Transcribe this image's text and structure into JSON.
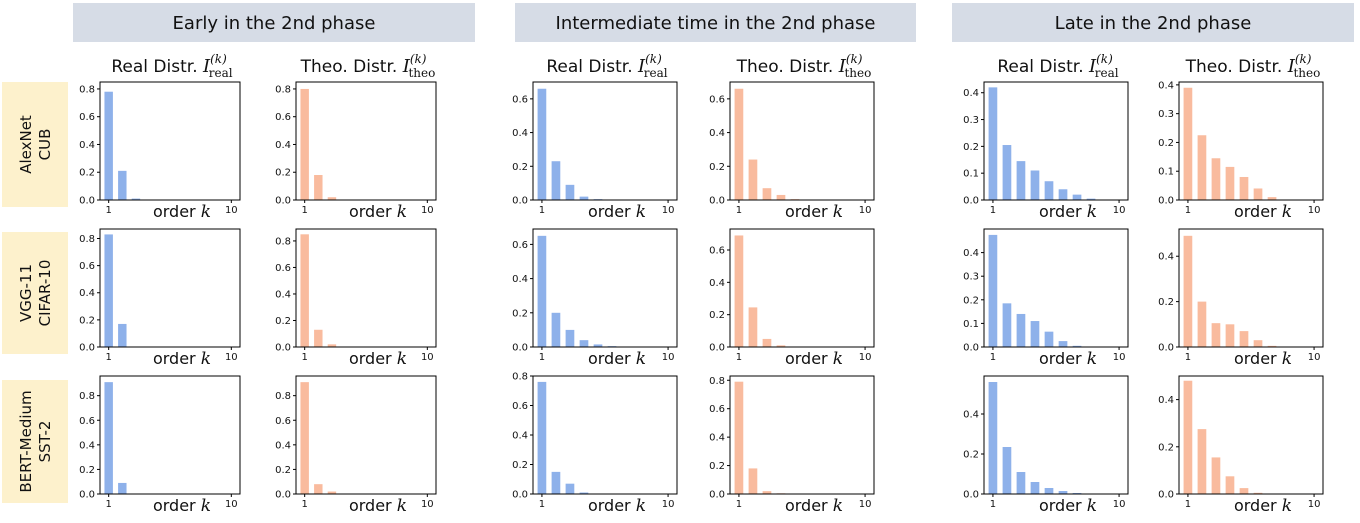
{
  "phases": [
    "Early in the 2nd phase",
    "Intermediate time in the 2nd phase",
    "Late in the 2nd phase"
  ],
  "rows": [
    {
      "line1": "AlexNet",
      "line2": "CUB"
    },
    {
      "line1": "VGG-11",
      "line2": "CIFAR-10"
    },
    {
      "line1": "BERT-Medium",
      "line2": "SST-2"
    }
  ],
  "columns": [
    {
      "title": "Real Distr.",
      "symbol": "I",
      "sup": "(k)",
      "sub": "real"
    },
    {
      "title": "Theo. Distr.",
      "symbol": "I",
      "sup": "(k)",
      "sub": "theo"
    }
  ],
  "colors": {
    "real": "#8eb1ea",
    "theo": "#f9bb9e",
    "header_bg": "#d6dce6",
    "row_bg": "#fdf1cc"
  },
  "chart_data": [
    {
      "type": "bar",
      "phase": "Early in the 2nd phase",
      "row": "AlexNet CUB",
      "distribution": "real",
      "xlabel": "order k",
      "x": [
        1,
        2,
        3,
        4,
        5,
        6,
        7,
        8,
        9,
        10
      ],
      "values": [
        0.78,
        0.21,
        0.01,
        0,
        0,
        0,
        0,
        0,
        0,
        0
      ],
      "ylim": [
        0,
        0.85
      ],
      "yticks": [
        0.0,
        0.2,
        0.4,
        0.6,
        0.8
      ],
      "xticks": [
        1,
        10
      ]
    },
    {
      "type": "bar",
      "phase": "Early in the 2nd phase",
      "row": "AlexNet CUB",
      "distribution": "theo",
      "xlabel": "order k",
      "x": [
        1,
        2,
        3,
        4,
        5,
        6,
        7,
        8,
        9,
        10
      ],
      "values": [
        0.8,
        0.18,
        0.02,
        0,
        0,
        0,
        0,
        0,
        0,
        0
      ],
      "ylim": [
        0,
        0.85
      ],
      "yticks": [
        0.0,
        0.2,
        0.4,
        0.6,
        0.8
      ],
      "xticks": [
        1,
        10
      ]
    },
    {
      "type": "bar",
      "phase": "Intermediate time in the 2nd phase",
      "row": "AlexNet CUB",
      "distribution": "real",
      "xlabel": "order k",
      "x": [
        1,
        2,
        3,
        4,
        5,
        6,
        7,
        8,
        9,
        10
      ],
      "values": [
        0.66,
        0.23,
        0.09,
        0.02,
        0.005,
        0,
        0,
        0,
        0,
        0
      ],
      "ylim": [
        0,
        0.7
      ],
      "yticks": [
        0.0,
        0.2,
        0.4,
        0.6
      ],
      "xticks": [
        1,
        10
      ]
    },
    {
      "type": "bar",
      "phase": "Intermediate time in the 2nd phase",
      "row": "AlexNet CUB",
      "distribution": "theo",
      "xlabel": "order k",
      "x": [
        1,
        2,
        3,
        4,
        5,
        6,
        7,
        8,
        9,
        10
      ],
      "values": [
        0.66,
        0.24,
        0.07,
        0.03,
        0.005,
        0,
        0,
        0,
        0,
        0
      ],
      "ylim": [
        0,
        0.7
      ],
      "yticks": [
        0.0,
        0.2,
        0.4,
        0.6
      ],
      "xticks": [
        1,
        10
      ]
    },
    {
      "type": "bar",
      "phase": "Late in the 2nd phase",
      "row": "AlexNet CUB",
      "distribution": "real",
      "xlabel": "order k",
      "x": [
        1,
        2,
        3,
        4,
        5,
        6,
        7,
        8,
        9,
        10
      ],
      "values": [
        0.42,
        0.205,
        0.145,
        0.11,
        0.07,
        0.04,
        0.02,
        0.005,
        0,
        0
      ],
      "ylim": [
        0,
        0.44
      ],
      "yticks": [
        0.0,
        0.1,
        0.2,
        0.3,
        0.4
      ],
      "xticks": [
        1,
        10
      ]
    },
    {
      "type": "bar",
      "phase": "Late in the 2nd phase",
      "row": "AlexNet CUB",
      "distribution": "theo",
      "xlabel": "order k",
      "x": [
        1,
        2,
        3,
        4,
        5,
        6,
        7,
        8,
        9,
        10
      ],
      "values": [
        0.39,
        0.225,
        0.145,
        0.115,
        0.08,
        0.04,
        0.01,
        0,
        0,
        0
      ],
      "ylim": [
        0,
        0.41
      ],
      "yticks": [
        0.0,
        0.1,
        0.2,
        0.3,
        0.4
      ],
      "xticks": [
        1,
        10
      ]
    },
    {
      "type": "bar",
      "phase": "Early in the 2nd phase",
      "row": "VGG-11 CIFAR-10",
      "distribution": "real",
      "xlabel": "order k",
      "x": [
        1,
        2,
        3,
        4,
        5,
        6,
        7,
        8,
        9,
        10
      ],
      "values": [
        0.83,
        0.17,
        0,
        0,
        0,
        0,
        0,
        0,
        0,
        0
      ],
      "ylim": [
        0,
        0.87
      ],
      "yticks": [
        0.0,
        0.2,
        0.4,
        0.6,
        0.8
      ],
      "xticks": [
        1,
        10
      ]
    },
    {
      "type": "bar",
      "phase": "Early in the 2nd phase",
      "row": "VGG-11 CIFAR-10",
      "distribution": "theo",
      "xlabel": "order k",
      "x": [
        1,
        2,
        3,
        4,
        5,
        6,
        7,
        8,
        9,
        10
      ],
      "values": [
        0.85,
        0.13,
        0.02,
        0,
        0,
        0,
        0,
        0,
        0,
        0
      ],
      "ylim": [
        0,
        0.89
      ],
      "yticks": [
        0.0,
        0.2,
        0.4,
        0.6,
        0.8
      ],
      "xticks": [
        1,
        10
      ]
    },
    {
      "type": "bar",
      "phase": "Intermediate time in the 2nd phase",
      "row": "VGG-11 CIFAR-10",
      "distribution": "real",
      "xlabel": "order k",
      "x": [
        1,
        2,
        3,
        4,
        5,
        6,
        7,
        8,
        9,
        10
      ],
      "values": [
        0.65,
        0.2,
        0.1,
        0.04,
        0.015,
        0.005,
        0,
        0,
        0,
        0
      ],
      "ylim": [
        0,
        0.69
      ],
      "yticks": [
        0.0,
        0.2,
        0.4,
        0.6
      ],
      "xticks": [
        1,
        10
      ]
    },
    {
      "type": "bar",
      "phase": "Intermediate time in the 2nd phase",
      "row": "VGG-11 CIFAR-10",
      "distribution": "theo",
      "xlabel": "order k",
      "x": [
        1,
        2,
        3,
        4,
        5,
        6,
        7,
        8,
        9,
        10
      ],
      "values": [
        0.69,
        0.245,
        0.05,
        0.01,
        0,
        0,
        0,
        0,
        0,
        0
      ],
      "ylim": [
        0,
        0.73
      ],
      "yticks": [
        0.0,
        0.2,
        0.4,
        0.6
      ],
      "xticks": [
        1,
        10
      ]
    },
    {
      "type": "bar",
      "phase": "Late in the 2nd phase",
      "row": "VGG-11 CIFAR-10",
      "distribution": "real",
      "xlabel": "order k",
      "x": [
        1,
        2,
        3,
        4,
        5,
        6,
        7,
        8,
        9,
        10
      ],
      "values": [
        0.475,
        0.185,
        0.14,
        0.11,
        0.065,
        0.025,
        0.005,
        0,
        0,
        0
      ],
      "ylim": [
        0,
        0.5
      ],
      "yticks": [
        0.0,
        0.1,
        0.2,
        0.3,
        0.4
      ],
      "xticks": [
        1,
        10
      ]
    },
    {
      "type": "bar",
      "phase": "Late in the 2nd phase",
      "row": "VGG-11 CIFAR-10",
      "distribution": "theo",
      "xlabel": "order k",
      "x": [
        1,
        2,
        3,
        4,
        5,
        6,
        7,
        8,
        9,
        10
      ],
      "values": [
        0.49,
        0.2,
        0.105,
        0.1,
        0.07,
        0.03,
        0.005,
        0,
        0,
        0
      ],
      "ylim": [
        0,
        0.52
      ],
      "yticks": [
        0.0,
        0.2,
        0.4
      ],
      "xticks": [
        1,
        10
      ]
    },
    {
      "type": "bar",
      "phase": "Early in the 2nd phase",
      "row": "BERT-Medium SST-2",
      "distribution": "real",
      "xlabel": "order k",
      "x": [
        1,
        2,
        3,
        4,
        5,
        6,
        7,
        8,
        9,
        10
      ],
      "values": [
        0.91,
        0.09,
        0,
        0,
        0,
        0,
        0,
        0,
        0,
        0
      ],
      "ylim": [
        0,
        0.96
      ],
      "yticks": [
        0.0,
        0.2,
        0.4,
        0.6,
        0.8
      ],
      "xticks": [
        1,
        10
      ]
    },
    {
      "type": "bar",
      "phase": "Early in the 2nd phase",
      "row": "BERT-Medium SST-2",
      "distribution": "theo",
      "xlabel": "order k",
      "x": [
        1,
        2,
        3,
        4,
        5,
        6,
        7,
        8,
        9,
        10
      ],
      "values": [
        0.91,
        0.08,
        0.02,
        0,
        0,
        0,
        0,
        0,
        0,
        0
      ],
      "ylim": [
        0,
        0.96
      ],
      "yticks": [
        0.0,
        0.2,
        0.4,
        0.6,
        0.8
      ],
      "xticks": [
        1,
        10
      ]
    },
    {
      "type": "bar",
      "phase": "Intermediate time in the 2nd phase",
      "row": "BERT-Medium SST-2",
      "distribution": "real",
      "xlabel": "order k",
      "x": [
        1,
        2,
        3,
        4,
        5,
        6,
        7,
        8,
        9,
        10
      ],
      "values": [
        0.76,
        0.15,
        0.07,
        0.01,
        0,
        0,
        0,
        0,
        0,
        0
      ],
      "ylim": [
        0,
        0.8
      ],
      "yticks": [
        0.0,
        0.2,
        0.4,
        0.6,
        0.8
      ],
      "xticks": [
        1,
        10
      ]
    },
    {
      "type": "bar",
      "phase": "Intermediate time in the 2nd phase",
      "row": "BERT-Medium SST-2",
      "distribution": "theo",
      "xlabel": "order k",
      "x": [
        1,
        2,
        3,
        4,
        5,
        6,
        7,
        8,
        9,
        10
      ],
      "values": [
        0.79,
        0.18,
        0.02,
        0.005,
        0,
        0,
        0,
        0,
        0,
        0
      ],
      "ylim": [
        0,
        0.83
      ],
      "yticks": [
        0.0,
        0.2,
        0.4,
        0.6,
        0.8
      ],
      "xticks": [
        1,
        10
      ]
    },
    {
      "type": "bar",
      "phase": "Late in the 2nd phase",
      "row": "BERT-Medium SST-2",
      "distribution": "real",
      "xlabel": "order k",
      "x": [
        1,
        2,
        3,
        4,
        5,
        6,
        7,
        8,
        9,
        10
      ],
      "values": [
        0.56,
        0.235,
        0.11,
        0.06,
        0.03,
        0.015,
        0.005,
        0,
        0,
        0
      ],
      "ylim": [
        0,
        0.59
      ],
      "yticks": [
        0.0,
        0.2,
        0.4
      ],
      "xticks": [
        1,
        10
      ]
    },
    {
      "type": "bar",
      "phase": "Late in the 2nd phase",
      "row": "BERT-Medium SST-2",
      "distribution": "theo",
      "xlabel": "order k",
      "x": [
        1,
        2,
        3,
        4,
        5,
        6,
        7,
        8,
        9,
        10
      ],
      "values": [
        0.48,
        0.275,
        0.155,
        0.075,
        0.025,
        0.005,
        0,
        0,
        0,
        0
      ],
      "ylim": [
        0,
        0.5
      ],
      "yticks": [
        0.0,
        0.2,
        0.4
      ],
      "xticks": [
        1,
        10
      ]
    }
  ]
}
